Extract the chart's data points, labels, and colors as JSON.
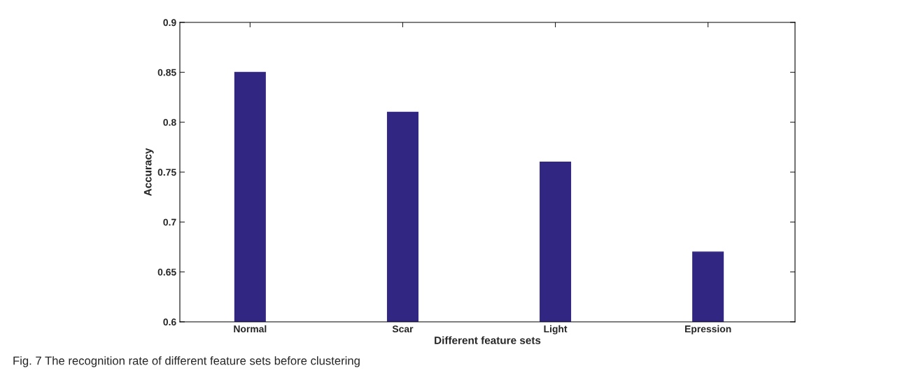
{
  "chart_data": {
    "type": "bar",
    "categories": [
      "Normal",
      "Scar",
      "Light",
      "Epression"
    ],
    "values": [
      0.85,
      0.81,
      0.76,
      0.67
    ],
    "color": "#312783",
    "xlabel": "Different feature sets",
    "ylabel": "Accuracy",
    "ylim": [
      0.6,
      0.9
    ],
    "yticks": [
      0.6,
      0.65,
      0.7,
      0.75,
      0.8,
      0.85,
      0.9
    ],
    "grid": false,
    "annotations": [
      "Fig. 7 The recognition rate of different feature sets before clustering"
    ]
  }
}
